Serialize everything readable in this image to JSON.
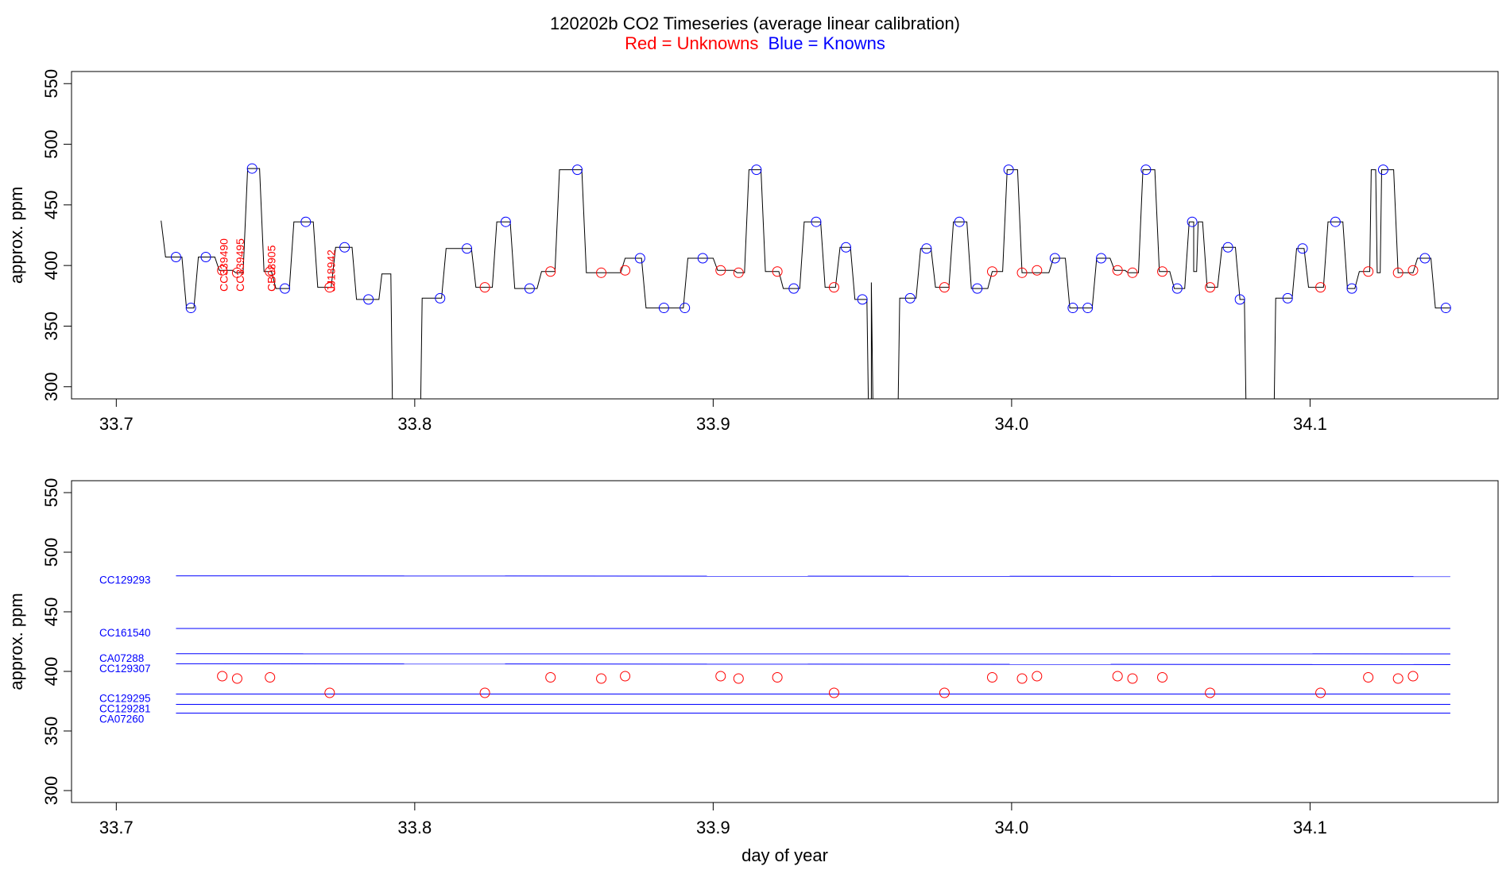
{
  "title": "120202b   CO2 Timeseries (average linear calibration)",
  "legend": {
    "red_label": "Red = Unknowns",
    "blue_label": "Blue = Knowns",
    "red_color": "#ff0000",
    "blue_color": "#0000ff"
  },
  "chart_data": [
    {
      "type": "line",
      "panel": "top",
      "xlabel": "",
      "ylabel": "approx. ppm",
      "xlim": [
        33.685,
        34.163
      ],
      "ylim": [
        290,
        560
      ],
      "xticks": [
        "33.7",
        "33.8",
        "33.9",
        "34.0",
        "34.1"
      ],
      "yticks": [
        "300",
        "350",
        "400",
        "450",
        "500",
        "550"
      ],
      "trace": [
        [
          33.715,
          437
        ],
        [
          33.7165,
          407
        ],
        [
          33.722,
          407
        ],
        [
          33.7235,
          365
        ],
        [
          33.726,
          365
        ],
        [
          33.7275,
          407
        ],
        [
          33.733,
          407
        ],
        [
          33.7345,
          396
        ],
        [
          33.739,
          396
        ],
        [
          33.74,
          394
        ],
        [
          33.7425,
          394
        ],
        [
          33.744,
          480
        ],
        [
          33.748,
          480
        ],
        [
          33.7495,
          395
        ],
        [
          33.752,
          395
        ],
        [
          33.7535,
          381
        ],
        [
          33.758,
          381
        ],
        [
          33.7595,
          436
        ],
        [
          33.766,
          436
        ],
        [
          33.7675,
          382
        ],
        [
          33.772,
          382
        ],
        [
          33.7735,
          415
        ],
        [
          33.779,
          415
        ],
        [
          33.7805,
          372
        ],
        [
          33.788,
          372
        ],
        [
          33.789,
          393
        ],
        [
          33.792,
          393
        ],
        [
          33.7925,
          290
        ],
        [
          33.802,
          290
        ],
        [
          33.8025,
          373
        ],
        [
          33.809,
          373
        ],
        [
          33.8105,
          414
        ],
        [
          33.819,
          414
        ],
        [
          33.8205,
          382
        ],
        [
          33.826,
          382
        ],
        [
          33.8275,
          436
        ],
        [
          33.832,
          436
        ],
        [
          33.8335,
          381
        ],
        [
          33.841,
          381
        ],
        [
          33.8425,
          395
        ],
        [
          33.847,
          395
        ],
        [
          33.8485,
          479
        ],
        [
          33.856,
          479
        ],
        [
          33.8575,
          394
        ],
        [
          33.869,
          394
        ],
        [
          33.8705,
          406
        ],
        [
          33.876,
          406
        ],
        [
          33.8775,
          365
        ],
        [
          33.89,
          365
        ],
        [
          33.8915,
          406
        ],
        [
          33.9,
          406
        ],
        [
          33.9015,
          396
        ],
        [
          33.907,
          396
        ],
        [
          33.908,
          394
        ],
        [
          33.9105,
          394
        ],
        [
          33.912,
          479
        ],
        [
          33.916,
          479
        ],
        [
          33.9175,
          395
        ],
        [
          33.922,
          395
        ],
        [
          33.9235,
          381
        ],
        [
          33.929,
          381
        ],
        [
          33.9305,
          436
        ],
        [
          33.936,
          436
        ],
        [
          33.9375,
          382
        ],
        [
          33.941,
          382
        ],
        [
          33.9425,
          415
        ],
        [
          33.946,
          415
        ],
        [
          33.9475,
          372
        ],
        [
          33.9515,
          372
        ],
        [
          33.952,
          290
        ],
        [
          33.953,
          290
        ],
        [
          33.953,
          386
        ],
        [
          33.9535,
          290
        ],
        [
          33.962,
          290
        ],
        [
          33.9625,
          373
        ],
        [
          33.968,
          373
        ],
        [
          33.9695,
          414
        ],
        [
          33.973,
          414
        ],
        [
          33.9745,
          382
        ],
        [
          33.979,
          382
        ],
        [
          33.9805,
          436
        ],
        [
          33.985,
          436
        ],
        [
          33.9865,
          381
        ],
        [
          33.992,
          381
        ],
        [
          33.9935,
          395
        ],
        [
          33.997,
          395
        ],
        [
          33.9985,
          479
        ],
        [
          34.002,
          479
        ],
        [
          34.0035,
          394
        ],
        [
          34.0125,
          394
        ],
        [
          34.014,
          406
        ],
        [
          34.018,
          406
        ],
        [
          34.0195,
          365
        ],
        [
          34.027,
          365
        ],
        [
          34.0285,
          406
        ],
        [
          34.033,
          406
        ],
        [
          34.0345,
          396
        ],
        [
          34.038,
          396
        ],
        [
          34.039,
          394
        ],
        [
          34.0425,
          394
        ],
        [
          34.044,
          479
        ],
        [
          34.048,
          479
        ],
        [
          34.0495,
          395
        ],
        [
          34.053,
          395
        ],
        [
          34.0545,
          381
        ],
        [
          34.058,
          381
        ],
        [
          34.0595,
          436
        ],
        [
          34.061,
          436
        ],
        [
          34.061,
          395
        ],
        [
          34.062,
          395
        ],
        [
          34.0625,
          436
        ],
        [
          34.064,
          436
        ],
        [
          34.0655,
          382
        ],
        [
          34.069,
          382
        ],
        [
          34.0705,
          415
        ],
        [
          34.075,
          415
        ],
        [
          34.0765,
          372
        ],
        [
          34.078,
          372
        ],
        [
          34.0785,
          290
        ],
        [
          34.088,
          290
        ],
        [
          34.0885,
          373
        ],
        [
          34.094,
          373
        ],
        [
          34.0955,
          414
        ],
        [
          34.098,
          414
        ],
        [
          34.0995,
          382
        ],
        [
          34.1045,
          382
        ],
        [
          34.106,
          436
        ],
        [
          34.111,
          436
        ],
        [
          34.1125,
          381
        ],
        [
          34.115,
          381
        ],
        [
          34.1165,
          395
        ],
        [
          34.12,
          395
        ],
        [
          34.1205,
          479
        ],
        [
          34.122,
          479
        ],
        [
          34.1225,
          394
        ],
        [
          34.1235,
          394
        ],
        [
          34.124,
          479
        ],
        [
          34.128,
          479
        ],
        [
          34.1295,
          394
        ],
        [
          34.1345,
          394
        ],
        [
          34.136,
          406
        ],
        [
          34.1405,
          406
        ],
        [
          34.142,
          365
        ],
        [
          34.147,
          365
        ]
      ],
      "knowns": [
        [
          33.72,
          407
        ],
        [
          33.725,
          365
        ],
        [
          33.73,
          407
        ],
        [
          33.7455,
          480
        ],
        [
          33.7565,
          381
        ],
        [
          33.7635,
          436
        ],
        [
          33.7765,
          415
        ],
        [
          33.7845,
          372
        ],
        [
          33.8085,
          373
        ],
        [
          33.8175,
          414
        ],
        [
          33.8305,
          436
        ],
        [
          33.8385,
          381
        ],
        [
          33.8545,
          479
        ],
        [
          33.8755,
          406
        ],
        [
          33.8835,
          365
        ],
        [
          33.8905,
          365
        ],
        [
          33.8965,
          406
        ],
        [
          33.9145,
          479
        ],
        [
          33.927,
          381
        ],
        [
          33.9345,
          436
        ],
        [
          33.9445,
          415
        ],
        [
          33.95,
          372
        ],
        [
          33.966,
          373
        ],
        [
          33.9715,
          414
        ],
        [
          33.9825,
          436
        ],
        [
          33.9885,
          381
        ],
        [
          33.999,
          479
        ],
        [
          34.0145,
          406
        ],
        [
          34.0205,
          365
        ],
        [
          34.0255,
          365
        ],
        [
          34.03,
          406
        ],
        [
          34.045,
          479
        ],
        [
          34.0555,
          381
        ],
        [
          34.0605,
          436
        ],
        [
          34.0725,
          415
        ],
        [
          34.0765,
          372
        ],
        [
          34.0925,
          373
        ],
        [
          34.0975,
          414
        ],
        [
          34.1085,
          436
        ],
        [
          34.114,
          381
        ],
        [
          34.1245,
          479
        ],
        [
          34.1385,
          406
        ],
        [
          34.1455,
          365
        ]
      ],
      "unknowns": [
        [
          33.7355,
          396
        ],
        [
          33.7405,
          394
        ],
        [
          33.7515,
          395
        ],
        [
          33.7715,
          382
        ],
        [
          33.8235,
          382
        ],
        [
          33.8455,
          395
        ],
        [
          33.8625,
          394
        ],
        [
          33.8705,
          396
        ],
        [
          33.9025,
          396
        ],
        [
          33.9085,
          394
        ],
        [
          33.9215,
          395
        ],
        [
          33.9405,
          382
        ],
        [
          33.9775,
          382
        ],
        [
          33.9935,
          395
        ],
        [
          34.0035,
          394
        ],
        [
          34.0085,
          396
        ],
        [
          34.0355,
          396
        ],
        [
          34.0405,
          394
        ],
        [
          34.0505,
          395
        ],
        [
          34.0665,
          382
        ],
        [
          34.1035,
          382
        ],
        [
          34.1195,
          395
        ],
        [
          34.1295,
          394
        ],
        [
          34.1345,
          396
        ]
      ],
      "unknown_labels": [
        {
          "label": "CC339490",
          "x": 33.736
        },
        {
          "label": "CC339495",
          "x": 33.7415
        },
        {
          "label": "CB08905",
          "x": 33.752
        },
        {
          "label": "JJ18942",
          "x": 33.772
        }
      ]
    },
    {
      "type": "line",
      "panel": "bottom",
      "xlabel": "day of year",
      "ylabel": "approx. ppm",
      "xlim": [
        33.685,
        34.163
      ],
      "ylim": [
        290,
        560
      ],
      "xticks": [
        "33.7",
        "33.8",
        "33.9",
        "34.0",
        "34.1"
      ],
      "yticks": [
        "300",
        "350",
        "400",
        "450",
        "500",
        "550"
      ],
      "x_range": [
        33.72,
        34.147
      ],
      "series": [
        {
          "name": "CC129293",
          "values": [
            480.2,
            479.6
          ]
        },
        {
          "name": "CC161540",
          "values": [
            436.0,
            436.0
          ]
        },
        {
          "name": "CA07288",
          "values": [
            414.8,
            414.7
          ]
        },
        {
          "name": "CC129307",
          "values": [
            406.4,
            405.7
          ]
        },
        {
          "name": "CC129295",
          "values": [
            381.0,
            381.0
          ]
        },
        {
          "name": "CC129281",
          "values": [
            372.3,
            372.3
          ]
        },
        {
          "name": "CA07260",
          "values": [
            365.0,
            365.0
          ]
        }
      ],
      "unknowns": [
        [
          33.7355,
          396
        ],
        [
          33.7405,
          394
        ],
        [
          33.7515,
          395
        ],
        [
          33.7715,
          382
        ],
        [
          33.8235,
          382
        ],
        [
          33.8455,
          395
        ],
        [
          33.8625,
          394
        ],
        [
          33.8705,
          396
        ],
        [
          33.9025,
          396
        ],
        [
          33.9085,
          394
        ],
        [
          33.9215,
          395
        ],
        [
          33.9405,
          382
        ],
        [
          33.9775,
          382
        ],
        [
          33.9935,
          395
        ],
        [
          34.0035,
          394
        ],
        [
          34.0085,
          396
        ],
        [
          34.0355,
          396
        ],
        [
          34.0405,
          394
        ],
        [
          34.0505,
          395
        ],
        [
          34.0665,
          382
        ],
        [
          34.1035,
          382
        ],
        [
          34.1195,
          395
        ],
        [
          34.1295,
          394
        ],
        [
          34.1345,
          396
        ]
      ]
    }
  ]
}
